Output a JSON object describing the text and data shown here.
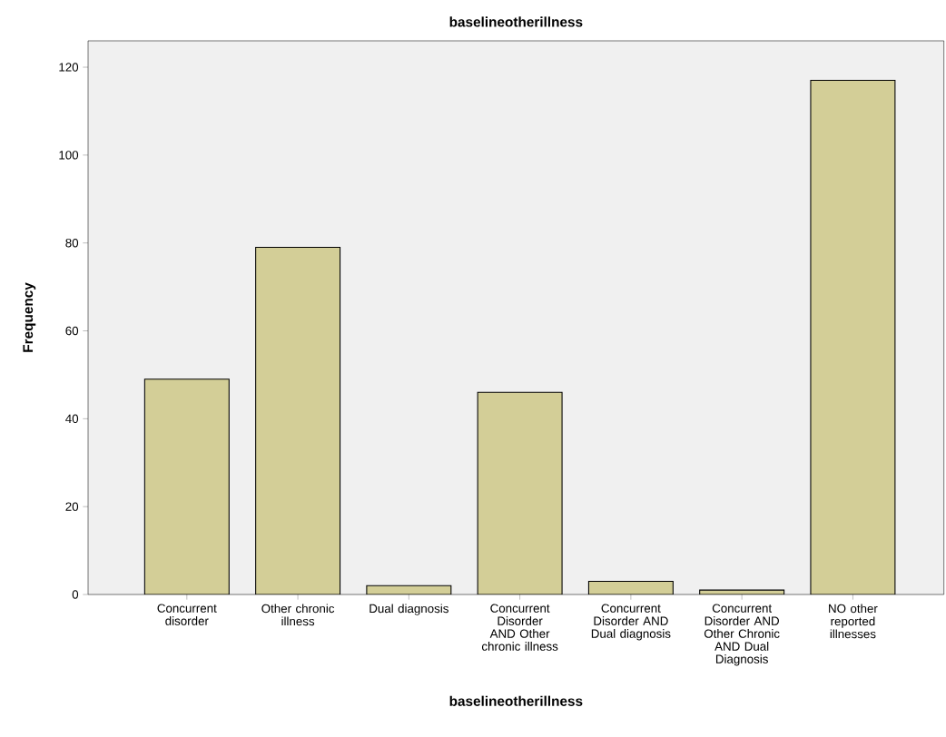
{
  "chart_data": {
    "type": "bar",
    "title": "baselineotherillness",
    "xlabel": "baselineotherillness",
    "ylabel": "Frequency",
    "categories": [
      "Concurrent disorder",
      "Other chronic illness",
      "Dual diagnosis",
      "Concurrent Disorder AND Other chronic illness",
      "Concurrent Disorder AND Dual diagnosis",
      "Concurrent Disorder AND Other Chronic AND Dual Diagnosis",
      "NO other reported illnesses"
    ],
    "values": [
      49,
      79,
      2,
      46,
      3,
      1,
      117
    ],
    "color": "#d3ce97",
    "ylim": [
      0,
      126
    ],
    "yticks": [
      0,
      20,
      40,
      60,
      80,
      100,
      120
    ],
    "grid": false,
    "legend": false
  }
}
